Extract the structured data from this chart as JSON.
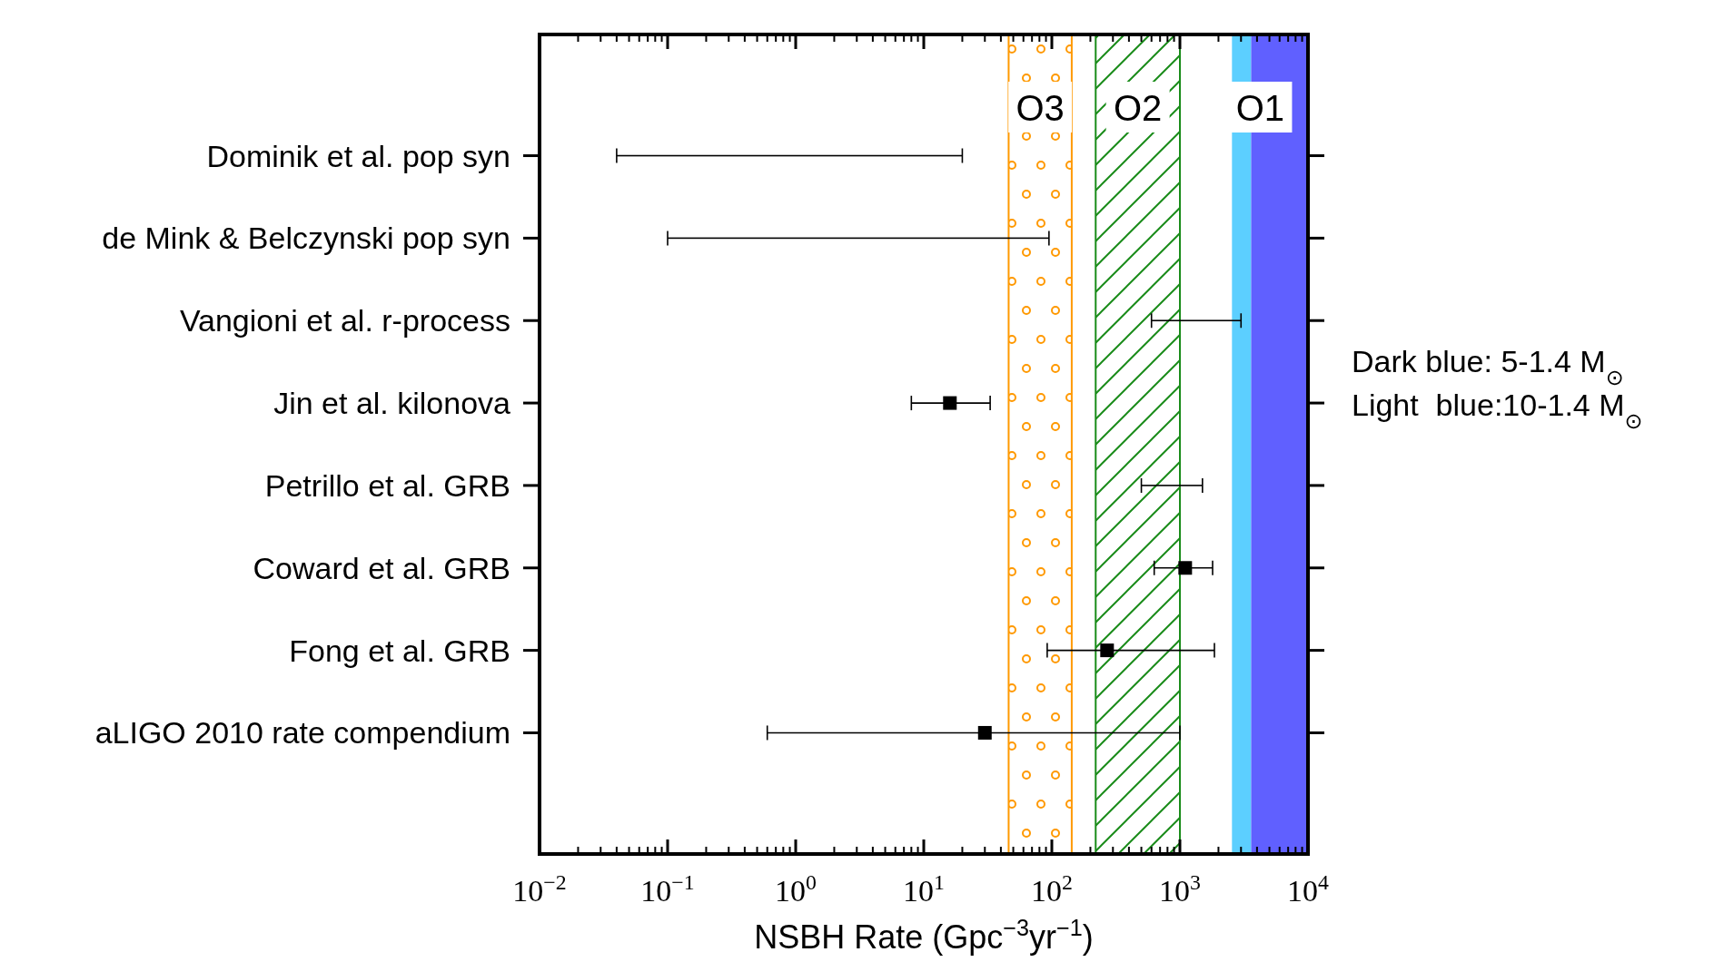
{
  "chart_data": {
    "type": "scatter",
    "orientation": "horizontal",
    "xlabel": "NSBH Rate (Gpc$^{−3}$yr$^{−1}$)",
    "categories": [
      "Dominik et al. pop syn",
      "de Mink & Belczynski pop syn",
      "Vangioni et al. r-process",
      "Jin et al. kilonova",
      "Petrillo et al. GRB",
      "Coward et al. GRB",
      "Fong et al. GRB",
      "aLIGO 2010 rate compendium"
    ],
    "series": [
      {
        "color": "#000000",
        "values": [
          null,
          null,
          null,
          16,
          null,
          1100,
          270,
          30
        ],
        "errors": [
          null,
          null,
          null,
          [
            8,
            33
          ],
          null,
          [
            630,
            1800
          ],
          [
            92,
            1860
          ],
          [
            0.6,
            1000
          ]
        ]
      },
      {
        "type": "bar",
        "color": "#000000",
        "base": [
          0.04,
          0.1,
          600,
          null,
          500,
          null,
          null,
          null
        ],
        "values": [
          19.96,
          94.9,
          2400,
          null,
          1000,
          null,
          null,
          null
        ]
      }
    ],
    "log": "x",
    "xlim": [
      0.01,
      10000
    ],
    "xticks": [
      {
        "value": 0.01,
        "label": "10$^{−2}$"
      },
      {
        "value": 0.1,
        "label": "10$^{−1}$"
      },
      {
        "value": 1,
        "label": "10$^{0}$"
      },
      {
        "value": 10,
        "label": "10$^{1}$"
      },
      {
        "value": 100,
        "label": "10$^{2}$"
      },
      {
        "value": 1000,
        "label": "10$^{3}$"
      },
      {
        "value": 10000,
        "label": "10$^{4}$"
      }
    ],
    "marker": "square",
    "grid": false,
    "bands": [
      {
        "axis": "x",
        "from": 46,
        "to": 143,
        "label": "O3",
        "color": "#ff9900"
      },
      {
        "axis": "x",
        "from": 220,
        "to": 1000,
        "label": "O2",
        "color": "#1a8c1a"
      },
      {
        "axis": "x",
        "from": 2550,
        "to": 3600,
        "label": null,
        "color": "#5ccfff"
      },
      {
        "axis": "x",
        "from": 3600,
        "to": 10000,
        "label": "O1",
        "color": "#6060ff"
      }
    ],
    "annotations": [
      "Dark blue: 5-1.4 M$_{⊙}$",
      "Light  blue:10-1.4 M$_{⊙}$"
    ]
  }
}
